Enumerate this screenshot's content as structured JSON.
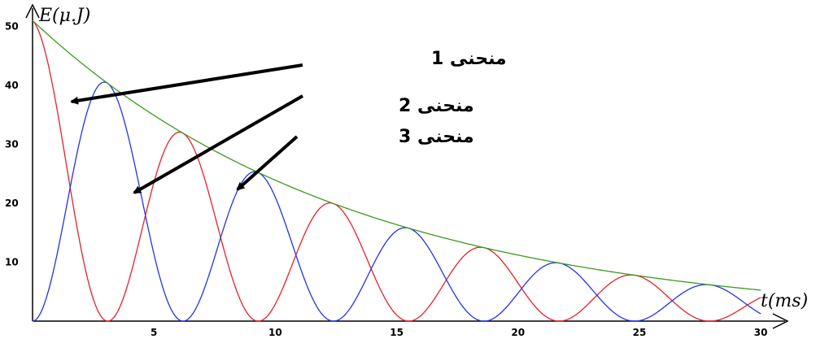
{
  "chart_data": {
    "type": "line",
    "title": "",
    "xlabel": "t(ms)",
    "ylabel": "E(μ.J)",
    "xlim": [
      0,
      31
    ],
    "ylim": [
      0,
      52
    ],
    "x_ticks": [
      "5",
      "10",
      "15",
      "20",
      "25",
      "30"
    ],
    "y_ticks": [
      "10",
      "20",
      "30",
      "40",
      "50"
    ],
    "grid": false,
    "model": {
      "E0": 51,
      "tau_ms": 13.2,
      "period_ms": 12.4
    },
    "series": [
      {
        "color": "#e8202a"
      },
      {
        "color": "#2433e6"
      },
      {
        "color": "#3c9a1e"
      }
    ],
    "annotations": [
      {
        "label": "منحنی 1"
      },
      {
        "label": "منحنی 2"
      },
      {
        "label": "منحنی 3"
      }
    ]
  }
}
